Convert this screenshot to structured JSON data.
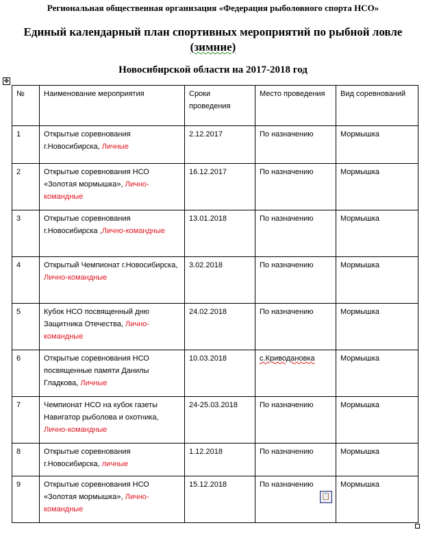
{
  "header": {
    "organization": "Региональная общественная организация «Федерация рыболовного спорта НСО»",
    "title_line1": "Единый календарный план спортивных мероприятий по рыбной ловле",
    "title_line2": "(зимние)",
    "subtitle": "Новосибирской области на 2017-2018 год"
  },
  "table": {
    "columns": [
      "№",
      "Наименование мероприятия",
      "Сроки проведения",
      "Место проведения",
      "Вид соревнований"
    ],
    "rows": [
      {
        "num": "1",
        "name": "Открытые соревнования г.Новосибирска, ",
        "type": "Личные",
        "date": "2.12.2017",
        "place": "По назначению",
        "kind": "Мормышка"
      },
      {
        "num": "2",
        "name": "Открытые соревнования НСО «Золотая мормышка», ",
        "type": "Лично-командные",
        "date": "16.12.2017",
        "place": "По назначению",
        "kind": "Мормышка"
      },
      {
        "num": "3",
        "name": "Открытые соревнования г.Новосибирска ,",
        "type": "Лично-командные",
        "date": "13.01.2018",
        "place": "По назначению",
        "kind": "Мормышка"
      },
      {
        "num": "4",
        "name": "Открытый Чемпионат г.Новосибирска, ",
        "type": "Лично-командные",
        "date": "3.02.2018",
        "place": "По назначению",
        "kind": "Мормышка"
      },
      {
        "num": "5",
        "name": "Кубок НСО посвященный дню Защитника Отечества, ",
        "type": "Лично-командные",
        "date": "24.02.2018",
        "place": "По назначению",
        "kind": "Мормышка"
      },
      {
        "num": "6",
        "name": "Открытые соревнования НСО посвященные памяти Данилы Гладкова, ",
        "type": "Личные",
        "date": "10.03.2018",
        "place": "с.Криводановка",
        "kind": "Мормышка"
      },
      {
        "num": "7",
        "name": "Чемпионат НСО на кубок газеты Навигатор рыболова и охотника, ",
        "type": "Лично-командные",
        "date": "24-25.03.2018",
        "place": "По назначению",
        "kind": "Мормышка"
      },
      {
        "num": "8",
        "name": "Открытые соревнования г.Новосибирска, ",
        "type": "личные",
        "date": "1.12.2018",
        "place": "По назначению",
        "kind": "Мормышка"
      },
      {
        "num": "9",
        "name": "Открытые соревнования НСО «Золотая мормышка», ",
        "type": "Лично-командные",
        "date": "15.12.2018",
        "place": "По назначению",
        "kind": "Мормышка"
      }
    ]
  },
  "colors": {
    "accent_red": "#e0141e"
  },
  "icons": {
    "table_move": "move-handle-icon",
    "paste_options": "clipboard-icon",
    "table_resize": "resize-handle-icon"
  }
}
